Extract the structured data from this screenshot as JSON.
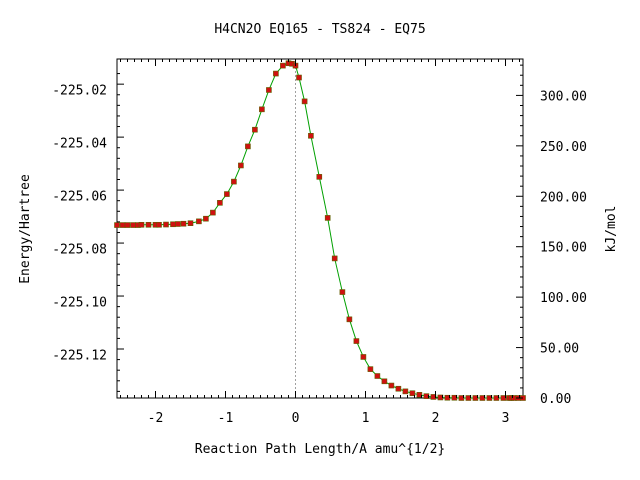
{
  "chart_data": {
    "type": "line",
    "title": "H4CN2O   EQ165 - TS824 - EQ75",
    "xlabel": "Reaction Path Length/A amu^{1/2}",
    "ylabel": "Energy/Hartree",
    "y2label": "kJ/mol",
    "xlim": [
      -2.55,
      3.25
    ],
    "ylim": [
      -225.1365,
      -225.0085
    ],
    "y2lim": [
      0,
      336.1
    ],
    "x_ticks": [
      -2,
      -1,
      0,
      1,
      2,
      3
    ],
    "x_tick_labels": [
      "-2",
      "-1",
      "0",
      "1",
      "2",
      "3"
    ],
    "y_ticks": [
      -225.02,
      -225.04,
      -225.06,
      -225.08,
      -225.1,
      -225.12
    ],
    "y_tick_labels": [
      "-225.02",
      "-225.04",
      "-225.06",
      "-225.08",
      "-225.10",
      "-225.12"
    ],
    "y2_ticks": [
      300,
      250,
      200,
      150,
      100,
      50,
      0
    ],
    "y2_tick_labels": [
      "300.00",
      "250.00",
      "200.00",
      "150.00",
      "100.00",
      "50.00",
      "0.00"
    ],
    "ts_marker_x": 0,
    "grid": false,
    "colors": {
      "line": "#00a000",
      "points": "#d01010",
      "point_edge": "#606000",
      "ts_line": "#a0a0a0"
    },
    "series": [
      {
        "x": [
          -2.55,
          -2.47,
          -2.4,
          -2.32,
          -2.25,
          -2.2,
          -2.1,
          -2.0,
          -1.95,
          -1.85,
          -1.75,
          -1.68,
          -1.6,
          -1.5,
          -1.38,
          -1.28,
          -1.18,
          -1.08,
          -0.98,
          -0.88,
          -0.78,
          -0.68,
          -0.58,
          -0.48,
          -0.38,
          -0.28,
          -0.18,
          -0.1,
          -0.05,
          0.0,
          0.05,
          0.13,
          0.22,
          0.34,
          0.46,
          0.56,
          0.67,
          0.77,
          0.87,
          0.97,
          1.07,
          1.17,
          1.27,
          1.37,
          1.47,
          1.57,
          1.67,
          1.77,
          1.87,
          1.97,
          2.07,
          2.17,
          2.27,
          2.37,
          2.47,
          2.57,
          2.67,
          2.77,
          2.87,
          2.97,
          3.05,
          3.08,
          3.12,
          3.18,
          3.25
        ],
        "y": [
          -225.0712,
          -225.0712,
          -225.0712,
          -225.0712,
          -225.0712,
          -225.0711,
          -225.0711,
          -225.0711,
          -225.0711,
          -225.071,
          -225.0709,
          -225.0708,
          -225.0707,
          -225.0705,
          -225.0698,
          -225.0688,
          -225.0665,
          -225.0628,
          -225.0595,
          -225.0548,
          -225.0487,
          -225.0415,
          -225.0352,
          -225.0275,
          -225.0202,
          -225.014,
          -225.011,
          -225.0101,
          -225.0103,
          -225.011,
          -225.0155,
          -225.0245,
          -225.0375,
          -225.053,
          -225.0685,
          -225.0838,
          -225.0965,
          -225.1068,
          -225.115,
          -225.121,
          -225.1256,
          -225.1282,
          -225.1302,
          -225.1318,
          -225.133,
          -225.134,
          -225.1347,
          -225.1353,
          -225.1358,
          -225.1361,
          -225.1363,
          -225.1364,
          -225.1364,
          -225.1365,
          -225.1365,
          -225.1365,
          -225.1365,
          -225.1365,
          -225.1365,
          -225.1365,
          -225.1365,
          -225.1365,
          -225.1365,
          -225.1365,
          -225.1365
        ]
      }
    ]
  }
}
